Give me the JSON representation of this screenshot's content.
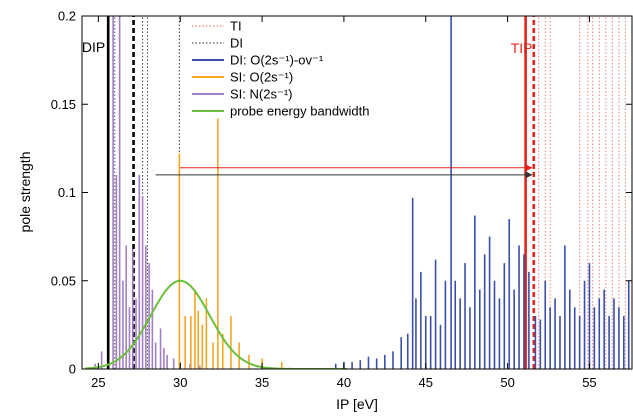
{
  "chart_data": {
    "type": "bar",
    "xlabel": "IP [eV]",
    "ylabel": "pole strength",
    "xlim": [
      24,
      57.6
    ],
    "ylim": [
      0,
      0.2
    ],
    "x_ticks": [
      25,
      30,
      35,
      40,
      45,
      50,
      55
    ],
    "y_ticks": [
      0,
      0.05,
      0.1,
      0.15,
      0.2
    ],
    "y_tick_labels": [
      "0",
      "0.05",
      "0.1",
      "0.15",
      "0.2"
    ],
    "legend_position": "top-center",
    "legend": [
      {
        "label": "TI",
        "color": "#f08080",
        "style": "dotted"
      },
      {
        "label": "DI",
        "color": "#555555",
        "style": "dotted"
      },
      {
        "label": "DI: O(2s⁻¹)-ov⁻¹",
        "color": "#3a4fa8",
        "style": "solid"
      },
      {
        "label": "SI: O(2s⁻¹)",
        "color": "#f5a623",
        "style": "solid"
      },
      {
        "label": "SI: N(2s⁻¹)",
        "color": "#a57fc4",
        "style": "solid"
      },
      {
        "label": "probe energy bandwidth",
        "color": "#6cbf3c",
        "style": "solid"
      }
    ],
    "annotations": [
      {
        "text": "DIP",
        "x": 25.6,
        "color": "#000000"
      },
      {
        "text": "TIP",
        "x": 51.1,
        "color": "#e0241b"
      }
    ],
    "vertical_lines": [
      {
        "x": 25.6,
        "color": "#000000",
        "style": "solid"
      },
      {
        "x": 27.15,
        "color": "#000000",
        "style": "dashed"
      },
      {
        "x": 51.1,
        "color": "#e0241b",
        "style": "solid"
      },
      {
        "x": 51.6,
        "color": "#e0241b",
        "style": "dashed"
      },
      {
        "x": 29.95,
        "color": "#555555",
        "style": "dotted"
      },
      {
        "x": 27.7,
        "color": "#555555",
        "style": "dotted"
      },
      {
        "x": 28.0,
        "color": "#555555",
        "style": "dotted"
      }
    ],
    "arrows": [
      {
        "x_start": 30.0,
        "x_end": 51.6,
        "y": 0.114,
        "color": "#e0241b"
      },
      {
        "x_start": 28.5,
        "x_end": 51.6,
        "y": 0.11,
        "color": "#333333"
      }
    ],
    "gaussian": {
      "name": "probe energy bandwidth",
      "center": 30.0,
      "peak": 0.05,
      "sigma": 1.8,
      "x_start": 24.2,
      "x_end": 40.2
    },
    "series": [
      {
        "name": "SI: N(2s⁻¹)",
        "x": [
          24.8,
          25.2,
          25.9,
          26.1,
          26.3,
          26.5,
          26.7,
          26.9,
          27.1,
          27.3,
          27.5,
          27.7,
          27.9,
          28.1,
          28.3,
          28.5,
          28.8,
          29.0,
          29.2,
          29.6,
          30.0,
          30.6,
          31.2
        ],
        "y": [
          0.003,
          0.01,
          0.2,
          0.11,
          0.2,
          0.05,
          0.07,
          0.035,
          0.068,
          0.04,
          0.11,
          0.098,
          0.07,
          0.06,
          0.045,
          0.015,
          0.023,
          0.012,
          0.008,
          0.006,
          0.004,
          0.003,
          0.002
        ]
      },
      {
        "name": "SI: O(2s⁻¹)",
        "x": [
          29.95,
          30.3,
          30.65,
          30.9,
          31.1,
          31.35,
          31.6,
          32.0,
          32.3,
          32.6,
          33.1,
          33.6,
          34.2,
          35.0,
          36.2
        ],
        "y": [
          0.122,
          0.03,
          0.03,
          0.045,
          0.033,
          0.025,
          0.04,
          0.015,
          0.142,
          0.02,
          0.03,
          0.015,
          0.008,
          0.006,
          0.004
        ]
      },
      {
        "name": "DI: O(2s⁻¹)-ov⁻¹",
        "x": [
          39.5,
          40.0,
          40.5,
          41.0,
          41.5,
          42.0,
          42.5,
          43.0,
          43.5,
          43.9,
          44.2,
          44.4,
          44.7,
          45.0,
          45.3,
          45.6,
          45.9,
          46.2,
          46.55,
          46.8,
          47.1,
          47.4,
          47.7,
          48.0,
          48.3,
          48.6,
          48.9,
          49.2,
          49.5,
          49.8,
          50.1,
          50.4,
          50.7,
          51.0,
          51.3,
          51.7,
          52.0,
          52.3,
          52.6,
          52.9,
          53.2,
          53.5,
          53.8,
          54.1,
          54.4,
          54.7,
          55.0,
          55.3,
          55.6,
          55.9,
          56.2,
          56.5,
          56.8,
          57.1,
          57.4
        ],
        "y": [
          0.003,
          0.004,
          0.004,
          0.005,
          0.007,
          0.006,
          0.008,
          0.01,
          0.018,
          0.02,
          0.097,
          0.04,
          0.055,
          0.03,
          0.03,
          0.062,
          0.025,
          0.05,
          0.2,
          0.05,
          0.04,
          0.06,
          0.035,
          0.087,
          0.045,
          0.065,
          0.075,
          0.05,
          0.04,
          0.06,
          0.085,
          0.045,
          0.07,
          0.065,
          0.055,
          0.03,
          0.028,
          0.05,
          0.035,
          0.04,
          0.03,
          0.07,
          0.045,
          0.035,
          0.03,
          0.05,
          0.06,
          0.035,
          0.04,
          0.045,
          0.03,
          0.04,
          0.035,
          0.03,
          0.05
        ]
      },
      {
        "name": "DI",
        "x": [
          26.0,
          27.7,
          28.0,
          29.95
        ],
        "y": [
          0.2,
          0.2,
          0.2,
          0.2
        ]
      },
      {
        "name": "TI",
        "x": [
          51.9,
          52.3,
          52.6,
          54.4,
          54.9,
          55.2,
          55.6,
          56.0,
          56.4,
          56.8,
          57.2
        ],
        "y": [
          0.2,
          0.2,
          0.2,
          0.2,
          0.2,
          0.2,
          0.2,
          0.2,
          0.2,
          0.2,
          0.2
        ]
      }
    ]
  }
}
